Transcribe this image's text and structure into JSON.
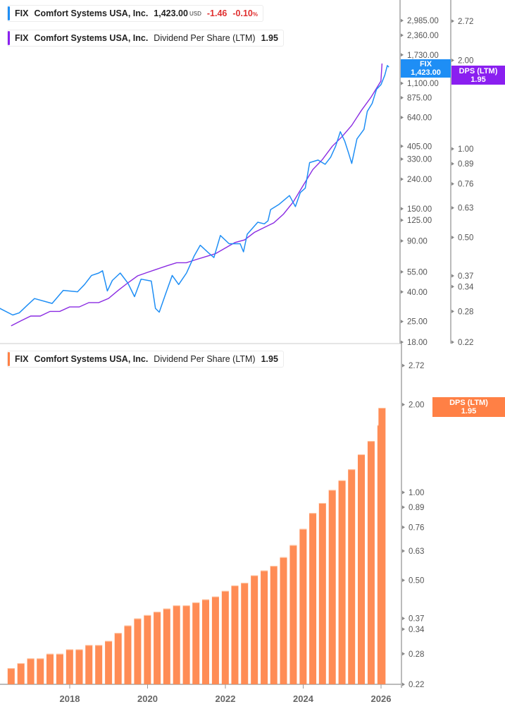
{
  "legends": {
    "price": {
      "ticker": "FIX",
      "name": "Comfort Systems USA, Inc.",
      "price": "1,423.00",
      "currency": "USD",
      "change": "-1.46",
      "change_pct": "-0.10",
      "pct_sign": "%"
    },
    "dps_top": {
      "ticker": "FIX",
      "name": "Comfort Systems USA, Inc.",
      "metric": "Dividend Per Share (LTM)",
      "value": "1.95"
    },
    "dps_bottom": {
      "ticker": "FIX",
      "name": "Comfort Systems USA, Inc.",
      "metric": "Dividend Per Share (LTM)",
      "value": "1.95"
    }
  },
  "badges": {
    "price": {
      "label": "FIX",
      "value": "1,423.00"
    },
    "dps_top": {
      "label": "DPS (LTM)",
      "value": "1.95"
    },
    "dps_bottom": {
      "label": "DPS (LTM)",
      "value": "1.95"
    }
  },
  "colors": {
    "price_line": "#1e8ef5",
    "dps_line": "#8a2be2",
    "dps_bars": "#ff8c55",
    "price_badge": "#1e8ef5",
    "dps_badge": "#8a1ff0",
    "bar_badge": "#ff8045"
  },
  "chart_data": [
    {
      "type": "line",
      "scale": "log",
      "series": [
        {
          "name": "FIX",
          "axis": "price",
          "x": [
            "2016-03-15",
            "2016-07-15",
            "2016-09-15",
            "2016-12-01",
            "2017-02-05",
            "2017-07-20",
            "2017-11-01",
            "2018-03-15",
            "2018-05-20",
            "2018-07-25",
            "2018-10-01",
            "2018-11-05",
            "2018-12-20",
            "2019-02-05",
            "2019-04-20",
            "2019-07-01",
            "2019-09-01",
            "2019-11-01",
            "2020-02-05",
            "2020-03-15",
            "2020-04-20",
            "2020-06-15",
            "2020-08-20",
            "2020-10-20",
            "2021-01-01",
            "2021-03-15",
            "2021-05-10",
            "2021-07-25",
            "2021-09-15",
            "2021-11-15",
            "2022-02-05",
            "2022-05-20",
            "2022-06-20",
            "2022-07-25",
            "2022-11-01",
            "2023-01-01",
            "2023-02-05",
            "2023-03-01",
            "2023-05-20",
            "2023-08-25",
            "2023-10-20",
            "2023-12-05",
            "2024-01-20",
            "2024-03-01",
            "2024-05-20",
            "2024-07-25",
            "2024-09-15",
            "2024-11-01",
            "2024-12-15",
            "2025-01-25",
            "2025-03-01",
            "2025-04-01",
            "2025-05-20",
            "2025-07-25",
            "2025-08-25",
            "2025-10-10",
            "2025-11-20",
            "2026-01-01",
            "2026-02-05",
            "2026-03-01",
            "2026-03-15"
          ],
          "y": [
            30.8,
            27.7,
            28.7,
            32.5,
            36.0,
            33.3,
            41.0,
            40.1,
            45,
            52,
            54,
            56,
            40.6,
            48,
            54,
            46,
            37.1,
            49,
            47.5,
            30.8,
            29,
            38.1,
            52,
            45,
            54,
            71,
            84,
            74.6,
            69,
            98,
            86,
            86,
            75.6,
            100,
            121,
            118,
            124,
            148,
            161,
            185,
            155,
            194,
            208,
            312,
            325,
            304,
            340,
            405,
            510,
            440,
            366,
            308,
            455,
            530,
            705,
            800,
            1000,
            1080,
            1250,
            1460,
            1423
          ]
        },
        {
          "name": "DPS (LTM)",
          "axis": "dps",
          "values_from": "dps_bars"
        }
      ],
      "price_axis": {
        "ticks": [
          "2,985.00",
          "2,360.00",
          "1,730.00",
          "1,100.00",
          "875.00",
          "640.00",
          "405.00",
          "330.00",
          "240.00",
          "150.00",
          "125.00",
          "90.00",
          "55.00",
          "40.00",
          "25.00",
          "18.00"
        ],
        "range": [
          18,
          2985
        ]
      },
      "dps_axis": {
        "ticks": [
          "2.72",
          "2.00",
          "1.00",
          "0.89",
          "0.76",
          "0.63",
          "0.50",
          "0.37",
          "0.34",
          "0.28",
          "0.22"
        ],
        "range": [
          0.22,
          2.72
        ]
      }
    },
    {
      "type": "bar",
      "scale": "log",
      "series": [
        {
          "name": "DPS (LTM)",
          "x": [
            "2016-06-30",
            "2016-09-30",
            "2016-12-31",
            "2017-03-31",
            "2017-06-30",
            "2017-09-30",
            "2017-12-31",
            "2018-03-31",
            "2018-06-30",
            "2018-09-30",
            "2018-12-31",
            "2019-03-31",
            "2019-06-30",
            "2019-09-30",
            "2019-12-31",
            "2020-03-31",
            "2020-06-30",
            "2020-09-30",
            "2020-12-31",
            "2021-03-31",
            "2021-06-30",
            "2021-09-30",
            "2021-12-31",
            "2022-03-31",
            "2022-06-30",
            "2022-09-30",
            "2022-12-31",
            "2023-03-31",
            "2023-06-30",
            "2023-09-30",
            "2023-12-31",
            "2024-03-31",
            "2024-06-30",
            "2024-09-30",
            "2024-12-31",
            "2025-03-31",
            "2025-06-30",
            "2025-09-30",
            "2025-12-31",
            "2026-01-10"
          ],
          "values": [
            0.25,
            0.26,
            0.27,
            0.27,
            0.28,
            0.28,
            0.29,
            0.29,
            0.3,
            0.3,
            0.31,
            0.33,
            0.35,
            0.37,
            0.38,
            0.39,
            0.4,
            0.41,
            0.41,
            0.42,
            0.43,
            0.44,
            0.46,
            0.48,
            0.49,
            0.52,
            0.54,
            0.56,
            0.6,
            0.66,
            0.75,
            0.85,
            0.92,
            1.02,
            1.1,
            1.2,
            1.35,
            1.5,
            1.7,
            1.95
          ]
        }
      ],
      "y_axis": {
        "ticks": [
          "2.72",
          "2.00",
          "1.00",
          "0.89",
          "0.76",
          "0.63",
          "0.50",
          "0.37",
          "0.34",
          "0.28",
          "0.22"
        ],
        "range": [
          0.22,
          2.72
        ]
      },
      "x_axis": {
        "ticks": [
          "2018",
          "2020",
          "2022",
          "2024",
          "2026"
        ]
      }
    }
  ]
}
